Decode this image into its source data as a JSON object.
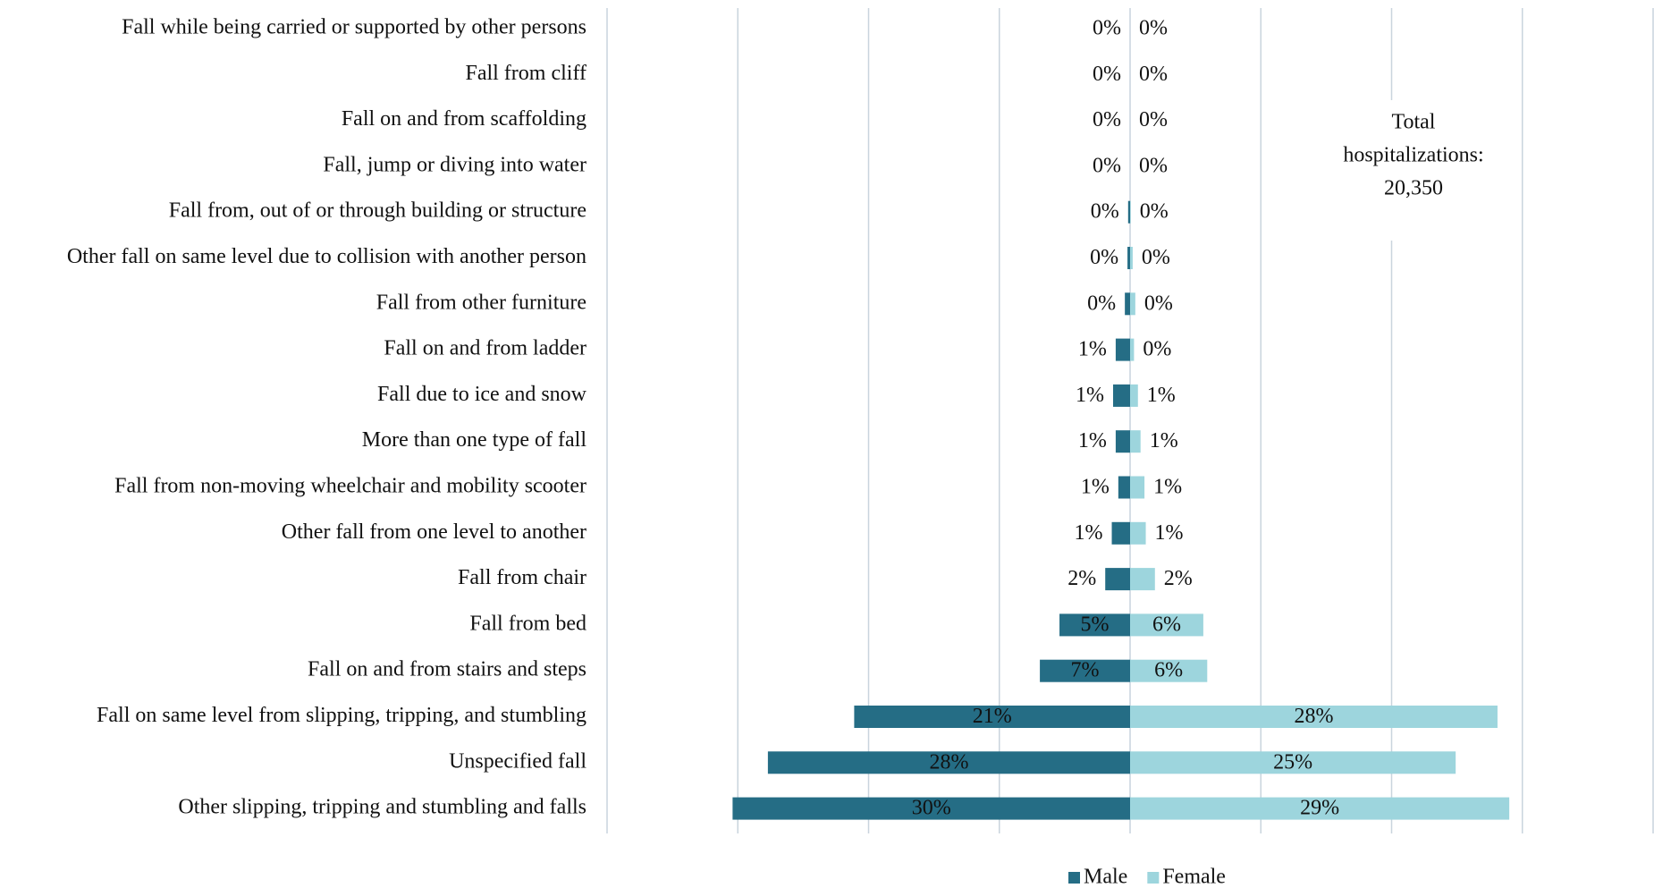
{
  "chart_data": {
    "type": "butterfly",
    "categories": [
      "Fall while being carried or supported by other persons",
      "Fall from cliff",
      "Fall on and from scaffolding",
      "Fall, jump or diving into water",
      "Fall from, out of or through building or structure",
      "Other fall on same level due to collision with another person",
      "Fall from other furniture",
      "Fall on and from ladder",
      "Fall due to ice and snow",
      "More than one type of fall",
      "Fall from non-moving wheelchair and mobility scooter",
      "Other fall from one level to another",
      "Fall from chair",
      "Fall from bed",
      "Fall on and from stairs and steps",
      "Fall on same level from slipping, tripping, and stumbling",
      "Unspecified fall",
      "Other slipping, tripping and stumbling and falls"
    ],
    "series": [
      {
        "name": "Male",
        "color": "#256d85",
        "side": "left",
        "values": [
          0,
          0,
          0,
          0,
          0.15,
          0.2,
          0.4,
          1.1,
          1.3,
          1.1,
          0.9,
          1.4,
          1.9,
          5.4,
          6.9,
          21.1,
          27.7,
          30.4
        ],
        "value_labels": [
          "0%",
          "0%",
          "0%",
          "0%",
          "0%",
          "0%",
          "0%",
          "1%",
          "1%",
          "1%",
          "1%",
          "1%",
          "2%",
          "5%",
          "7%",
          "21%",
          "28%",
          "30%"
        ]
      },
      {
        "name": "Female",
        "color": "#9dd5dd",
        "side": "right",
        "values": [
          0,
          0,
          0,
          0,
          0.05,
          0.2,
          0.4,
          0.3,
          0.6,
          0.8,
          1.1,
          1.2,
          1.9,
          5.6,
          5.9,
          28.1,
          24.9,
          29.0
        ],
        "value_labels": [
          "0%",
          "0%",
          "0%",
          "0%",
          "0%",
          "0%",
          "0%",
          "0%",
          "1%",
          "1%",
          "1%",
          "1%",
          "2%",
          "6%",
          "6%",
          "28%",
          "25%",
          "29%"
        ]
      }
    ],
    "xlim": [
      0,
      40
    ],
    "xticks": [
      0,
      10,
      20,
      30,
      40
    ],
    "grid": true,
    "legend": "bottom",
    "annotation": [
      "Total",
      "hospitalizations:",
      "20,350"
    ]
  }
}
